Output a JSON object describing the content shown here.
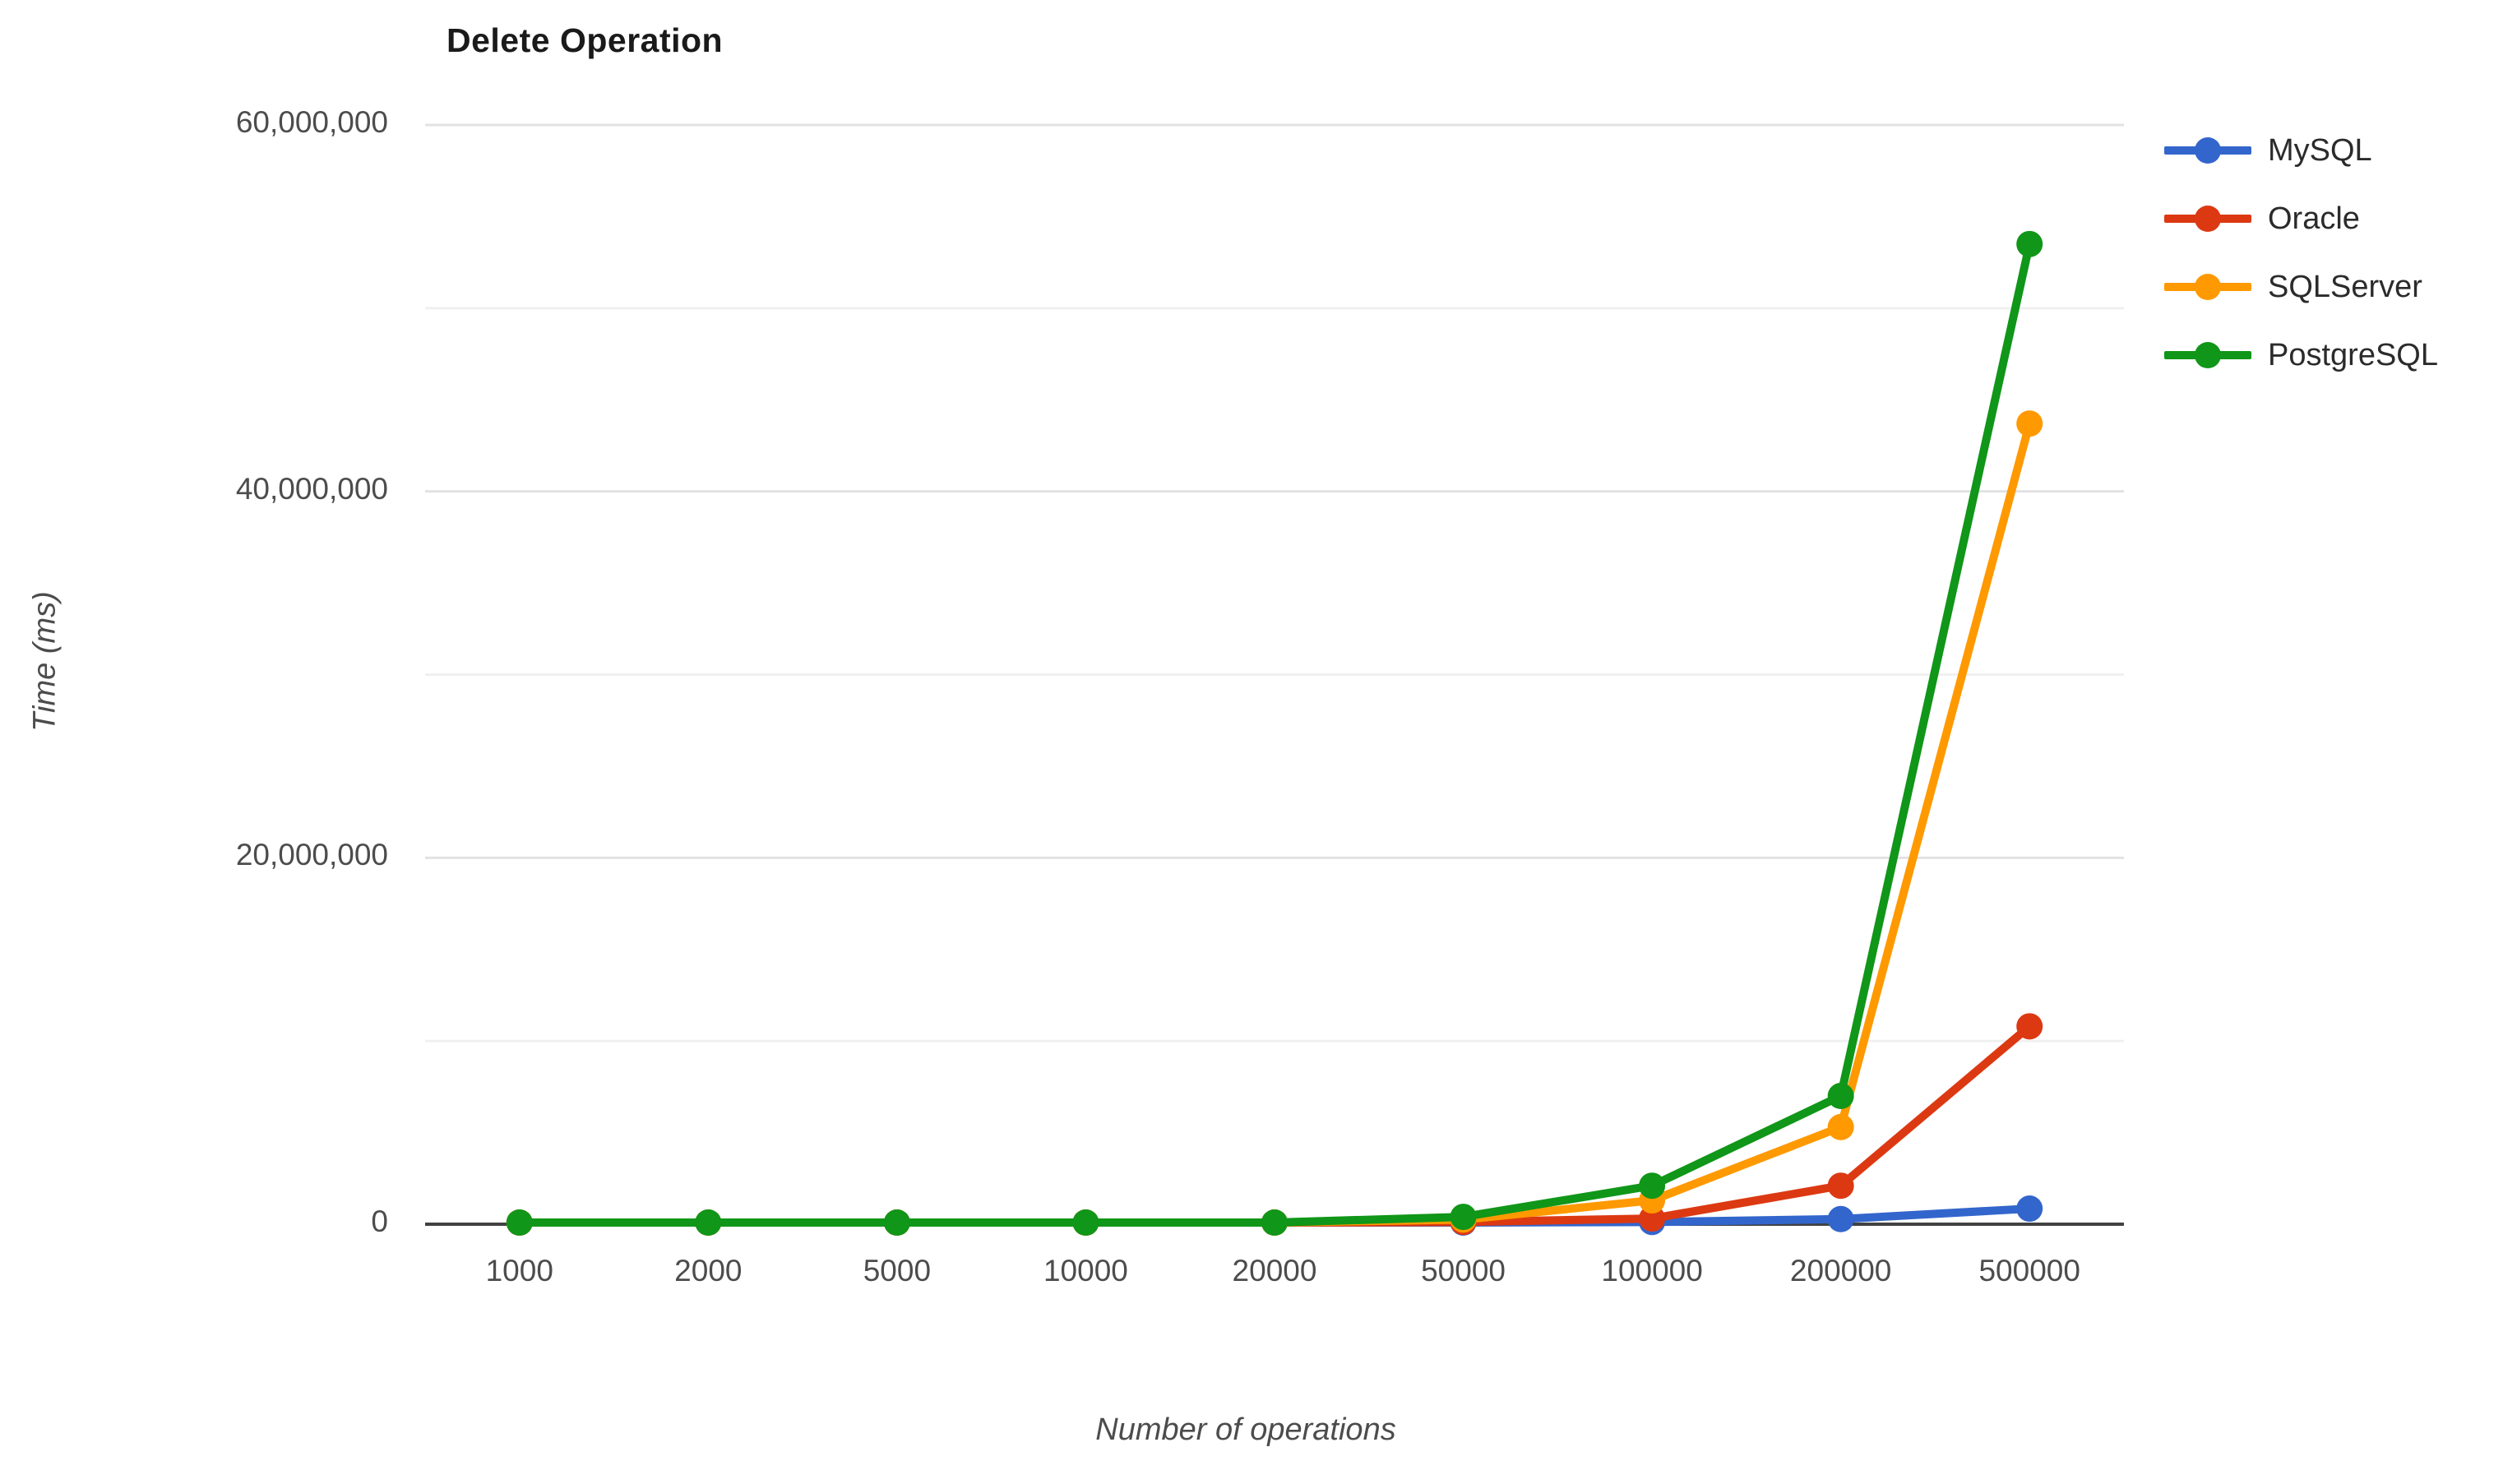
{
  "chart_data": {
    "type": "line",
    "title": "Delete Operation",
    "xlabel": "Number of operations",
    "ylabel": "Time (ms)",
    "categories": [
      "1000",
      "2000",
      "5000",
      "10000",
      "20000",
      "50000",
      "100000",
      "200000",
      "500000"
    ],
    "series": [
      {
        "name": "MySQL",
        "color": "#3366CC",
        "values": [
          150,
          350,
          900,
          2500,
          7000,
          35000,
          120000,
          280000,
          850000
        ]
      },
      {
        "name": "Oracle",
        "color": "#DC3912",
        "values": [
          400,
          900,
          2500,
          8000,
          25000,
          120000,
          310000,
          2100000,
          10800000
        ]
      },
      {
        "name": "SQLServer",
        "color": "#FF9900",
        "values": [
          600,
          1500,
          5000,
          15000,
          60000,
          250000,
          1300000,
          5300000,
          43700000
        ]
      },
      {
        "name": "PostgreSQL",
        "color": "#109618",
        "values": [
          800,
          2000,
          7000,
          20000,
          80000,
          400000,
          2100000,
          7000000,
          53500000
        ]
      }
    ],
    "ylim": [
      0,
      60000000
    ],
    "y_ticks": [
      {
        "value": 0,
        "label": "0"
      },
      {
        "value": 20000000,
        "label": "20,000,000"
      },
      {
        "value": 40000000,
        "label": "40,000,000"
      },
      {
        "value": 60000000,
        "label": "60,000,000"
      }
    ],
    "grid": {
      "major_step": 20000000,
      "minor_step": 10000000,
      "vertical": false
    },
    "legend_position": "right",
    "colors": {
      "major_gridline": "#e2e2e2",
      "minor_gridline": "#f0f0f0",
      "axis_line": "#424242",
      "tick_text": "#4c4c4c",
      "legend_text": "#2b2b2b",
      "title_text": "#1a1a1a",
      "background": "#ffffff"
    }
  }
}
